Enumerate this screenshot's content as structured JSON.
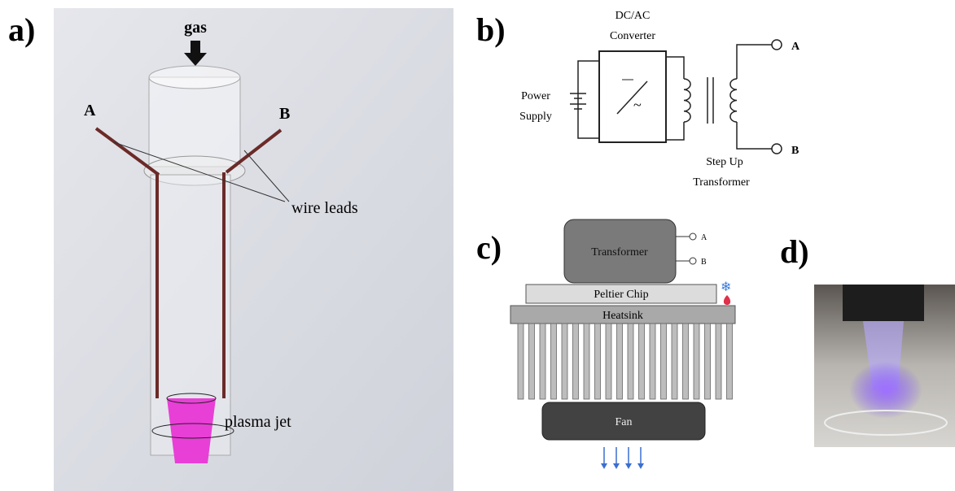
{
  "panel_a": {
    "label": "a)",
    "gas": "gas",
    "lead_a": "A",
    "lead_b": "B",
    "wire_leads": "wire leads",
    "plasma_jet": "plasma jet"
  },
  "panel_b": {
    "label": "b)",
    "converter": [
      "DC/AC",
      "Converter"
    ],
    "power_supply": [
      "Power",
      "Supply"
    ],
    "terminal_a": "A",
    "terminal_b": "B",
    "transformer": [
      "Step Up",
      "Transformer"
    ]
  },
  "panel_c": {
    "label": "c)",
    "transformer": "Transformer",
    "terminal_a": "A",
    "terminal_b": "B",
    "peltier": "Peltier Chip",
    "heatsink": "Heatsink",
    "fan": "Fan"
  },
  "panel_d": {
    "label": "d)"
  }
}
